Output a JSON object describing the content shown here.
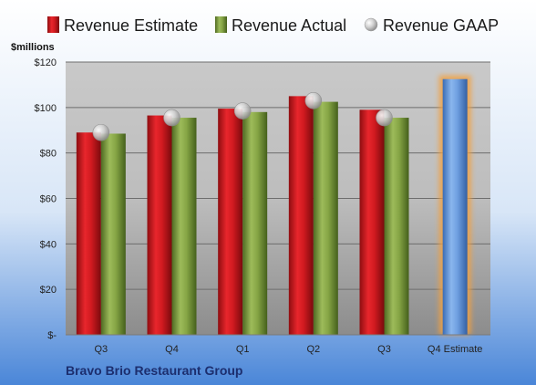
{
  "chart_data": {
    "type": "bar",
    "unit_label": "$millions",
    "categories": [
      "Q3",
      "Q4",
      "Q1",
      "Q2",
      "Q3",
      "Q4 Estimate"
    ],
    "series": [
      {
        "name": "Revenue Estimate",
        "kind": "bar",
        "color": "#c0141a",
        "values": [
          89,
          96.5,
          99.5,
          105,
          99,
          null
        ]
      },
      {
        "name": "Revenue Actual",
        "kind": "bar",
        "color": "#7a9a3a",
        "values": [
          88.5,
          95.5,
          98,
          102.5,
          95.5,
          null
        ]
      },
      {
        "name": "Revenue GAAP",
        "kind": "marker",
        "color": "#bfbfbf",
        "values": [
          89,
          95.5,
          98.5,
          103,
          95.5,
          null
        ]
      },
      {
        "name": "Q4 Estimate",
        "kind": "bar",
        "color": "#5a8fd6",
        "highlight": "#f2a040",
        "values": [
          null,
          null,
          null,
          null,
          null,
          112.5
        ]
      }
    ],
    "y_ticks": [
      "$-",
      "$20",
      "$40",
      "$60",
      "$80",
      "$100",
      "$120"
    ],
    "ylim": [
      0,
      120
    ],
    "grid": true,
    "legend_position": "top",
    "footer": "Bravo Brio Restaurant Group"
  }
}
